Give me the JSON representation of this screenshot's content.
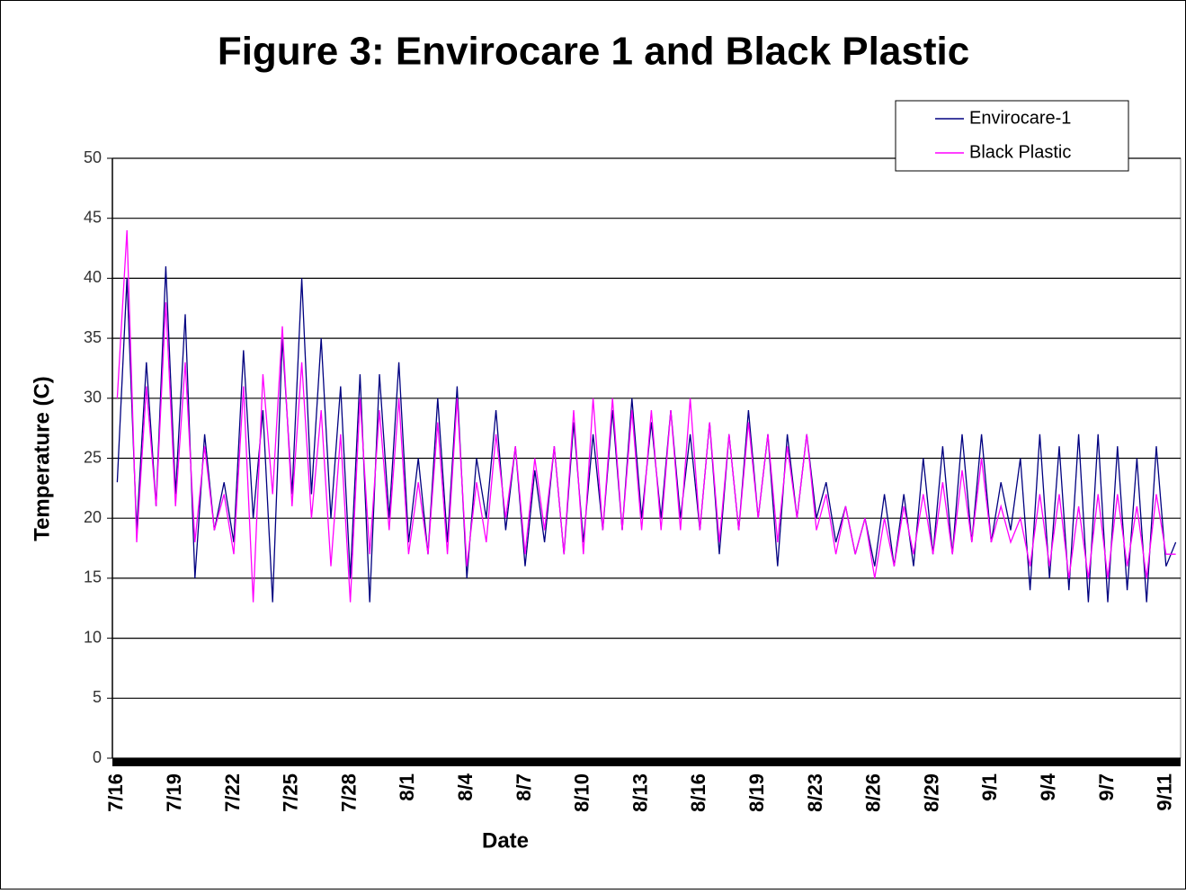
{
  "chart_data": {
    "type": "line",
    "title": "Figure 3: Envirocare 1  and Black Plastic",
    "x_label": "Date",
    "y_label": "Temperature (C)",
    "categories": [
      "7/16",
      null,
      null,
      null,
      null,
      null,
      "7/19",
      null,
      null,
      null,
      null,
      null,
      "7/22",
      null,
      null,
      null,
      null,
      null,
      "7/25",
      null,
      null,
      null,
      null,
      null,
      "7/28",
      null,
      null,
      null,
      null,
      null,
      "8/1",
      null,
      null,
      null,
      null,
      null,
      "8/4",
      null,
      null,
      null,
      null,
      null,
      "8/7",
      null,
      null,
      null,
      null,
      null,
      "8/10",
      null,
      null,
      null,
      null,
      null,
      "8/13",
      null,
      null,
      null,
      null,
      null,
      "8/16",
      null,
      null,
      null,
      null,
      null,
      "8/19",
      null,
      null,
      null,
      null,
      null,
      "8/23",
      null,
      null,
      null,
      null,
      null,
      "8/26",
      null,
      null,
      null,
      null,
      null,
      "8/29",
      null,
      null,
      null,
      null,
      null,
      "9/1",
      null,
      null,
      null,
      null,
      null,
      "9/4",
      null,
      null,
      null,
      null,
      null,
      "9/7",
      null,
      null,
      null,
      null,
      null,
      "9/11",
      null
    ],
    "series": [
      {
        "name": "Envirocare-1",
        "color": "#000080",
        "values": [
          23,
          40,
          19,
          33,
          21,
          41,
          22,
          37,
          15,
          27,
          19,
          23,
          18,
          34,
          20,
          29,
          13,
          35,
          22,
          40,
          22,
          35,
          20,
          31,
          15,
          32,
          13,
          32,
          20,
          33,
          18,
          25,
          17,
          30,
          18,
          31,
          15,
          25,
          20,
          29,
          19,
          26,
          16,
          24,
          18,
          26,
          17,
          28,
          18,
          27,
          19,
          29,
          19,
          30,
          20,
          28,
          20,
          29,
          20,
          27,
          19,
          28,
          17,
          27,
          19,
          29,
          20,
          27,
          16,
          27,
          20,
          27,
          20,
          23,
          18,
          21,
          17,
          20,
          16,
          22,
          16,
          22,
          16,
          25,
          17,
          26,
          17,
          27,
          18,
          27,
          18,
          23,
          19,
          25,
          14,
          27,
          15,
          26,
          14,
          27,
          13,
          27,
          13,
          26,
          14,
          25,
          13,
          26,
          16,
          18
        ]
      },
      {
        "name": "Black Plastic",
        "color": "#ff00ff",
        "values": [
          30,
          44,
          18,
          31,
          21,
          38,
          21,
          33,
          18,
          26,
          19,
          22,
          17,
          31,
          13,
          32,
          22,
          36,
          21,
          33,
          20,
          29,
          16,
          27,
          13,
          30,
          17,
          29,
          19,
          30,
          17,
          23,
          17,
          28,
          17,
          30,
          16,
          23,
          18,
          27,
          20,
          26,
          17,
          25,
          19,
          26,
          17,
          29,
          17,
          30,
          19,
          30,
          19,
          29,
          19,
          29,
          19,
          29,
          19,
          30,
          19,
          28,
          18,
          27,
          19,
          28,
          20,
          27,
          18,
          26,
          20,
          27,
          19,
          22,
          17,
          21,
          17,
          20,
          15,
          20,
          16,
          21,
          17,
          22,
          17,
          23,
          17,
          24,
          18,
          25,
          18,
          21,
          18,
          20,
          16,
          22,
          16,
          22,
          15,
          21,
          15,
          22,
          15,
          22,
          16,
          21,
          15,
          22,
          17,
          17
        ]
      }
    ],
    "ylim": [
      0,
      50
    ],
    "yticks": [
      0,
      5,
      10,
      15,
      20,
      25,
      30,
      35,
      40,
      45,
      50
    ],
    "grid": true,
    "legend": "top-right"
  }
}
